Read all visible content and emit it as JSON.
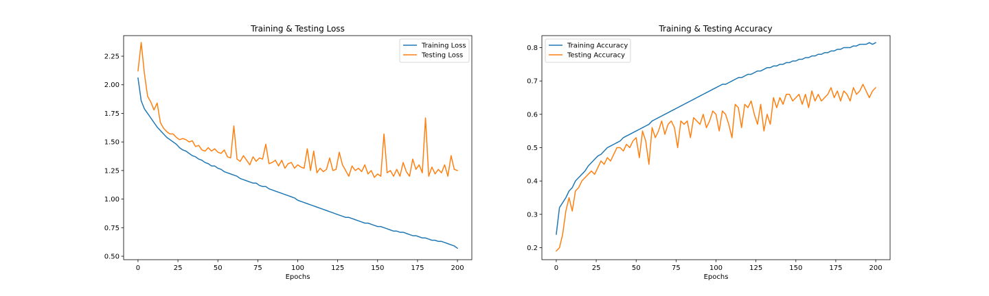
{
  "colors": {
    "training": "#1f77b4",
    "testing": "#ff7f0e"
  },
  "chart_data": [
    {
      "type": "line",
      "title": "Training & Testing Loss",
      "xlabel": "Epochs",
      "ylabel": "",
      "xlim": [
        -9,
        209
      ],
      "ylim": [
        0.47,
        2.43
      ],
      "xticks": [
        0,
        25,
        50,
        75,
        100,
        125,
        150,
        175,
        200
      ],
      "yticks": [
        0.5,
        0.75,
        1.0,
        1.25,
        1.5,
        1.75,
        2.0,
        2.25
      ],
      "ytick_labels": [
        "0.50",
        "0.75",
        "1.00",
        "1.25",
        "1.50",
        "1.75",
        "2.00",
        "2.25"
      ],
      "legend": "top-right",
      "grid": false,
      "x": [
        0,
        2,
        4,
        6,
        8,
        10,
        12,
        14,
        16,
        18,
        20,
        22,
        24,
        26,
        28,
        30,
        32,
        34,
        36,
        38,
        40,
        42,
        44,
        46,
        48,
        50,
        52,
        54,
        56,
        58,
        60,
        62,
        64,
        66,
        68,
        70,
        72,
        74,
        76,
        78,
        80,
        82,
        84,
        86,
        88,
        90,
        92,
        94,
        96,
        98,
        100,
        102,
        104,
        106,
        108,
        110,
        112,
        114,
        116,
        118,
        120,
        122,
        124,
        126,
        128,
        130,
        132,
        134,
        136,
        138,
        140,
        142,
        144,
        146,
        148,
        150,
        152,
        154,
        156,
        158,
        160,
        162,
        164,
        166,
        168,
        170,
        172,
        174,
        176,
        178,
        180,
        182,
        184,
        186,
        188,
        190,
        192,
        194,
        196,
        198,
        200
      ],
      "series": [
        {
          "name": "Training Loss",
          "color": "#1f77b4",
          "values": [
            2.06,
            1.86,
            1.79,
            1.75,
            1.71,
            1.67,
            1.63,
            1.6,
            1.57,
            1.54,
            1.52,
            1.5,
            1.48,
            1.45,
            1.43,
            1.42,
            1.4,
            1.38,
            1.37,
            1.35,
            1.34,
            1.32,
            1.31,
            1.29,
            1.29,
            1.27,
            1.26,
            1.24,
            1.23,
            1.22,
            1.21,
            1.2,
            1.18,
            1.17,
            1.16,
            1.15,
            1.14,
            1.14,
            1.12,
            1.11,
            1.11,
            1.09,
            1.08,
            1.07,
            1.06,
            1.05,
            1.04,
            1.03,
            1.02,
            1.01,
            0.99,
            0.98,
            0.97,
            0.96,
            0.95,
            0.94,
            0.93,
            0.92,
            0.91,
            0.9,
            0.89,
            0.88,
            0.87,
            0.86,
            0.85,
            0.84,
            0.84,
            0.83,
            0.82,
            0.81,
            0.8,
            0.79,
            0.79,
            0.78,
            0.77,
            0.76,
            0.76,
            0.75,
            0.74,
            0.73,
            0.72,
            0.72,
            0.71,
            0.71,
            0.7,
            0.69,
            0.68,
            0.68,
            0.67,
            0.66,
            0.66,
            0.65,
            0.64,
            0.64,
            0.63,
            0.63,
            0.62,
            0.61,
            0.6,
            0.59,
            0.57
          ]
        },
        {
          "name": "Testing Loss",
          "color": "#ff7f0e",
          "values": [
            2.12,
            2.37,
            2.1,
            1.9,
            1.85,
            1.78,
            1.84,
            1.67,
            1.62,
            1.59,
            1.57,
            1.57,
            1.54,
            1.52,
            1.53,
            1.52,
            1.5,
            1.51,
            1.46,
            1.47,
            1.43,
            1.42,
            1.45,
            1.42,
            1.44,
            1.41,
            1.4,
            1.43,
            1.37,
            1.36,
            1.64,
            1.35,
            1.33,
            1.38,
            1.34,
            1.3,
            1.37,
            1.33,
            1.36,
            1.35,
            1.48,
            1.31,
            1.32,
            1.34,
            1.29,
            1.34,
            1.27,
            1.31,
            1.32,
            1.27,
            1.3,
            1.28,
            1.27,
            1.44,
            1.25,
            1.42,
            1.23,
            1.27,
            1.24,
            1.26,
            1.36,
            1.25,
            1.26,
            1.41,
            1.3,
            1.25,
            1.2,
            1.29,
            1.25,
            1.27,
            1.24,
            1.3,
            1.22,
            1.25,
            1.19,
            1.22,
            1.2,
            1.57,
            1.23,
            1.25,
            1.2,
            1.26,
            1.2,
            1.32,
            1.24,
            1.2,
            1.35,
            1.26,
            1.3,
            1.23,
            1.71,
            1.2,
            1.28,
            1.22,
            1.26,
            1.23,
            1.3,
            1.2,
            1.38,
            1.26,
            1.25
          ]
        }
      ]
    },
    {
      "type": "line",
      "title": "Training & Testing Accuracy",
      "xlabel": "Epochs",
      "ylabel": "",
      "xlim": [
        -9,
        209
      ],
      "ylim": [
        0.164,
        0.836
      ],
      "xticks": [
        0,
        25,
        50,
        75,
        100,
        125,
        150,
        175,
        200
      ],
      "yticks": [
        0.2,
        0.3,
        0.4,
        0.5,
        0.6,
        0.7,
        0.8
      ],
      "ytick_labels": [
        "0.2",
        "0.3",
        "0.4",
        "0.5",
        "0.6",
        "0.7",
        "0.8"
      ],
      "legend": "top-left",
      "grid": false,
      "x": [
        0,
        2,
        4,
        6,
        8,
        10,
        12,
        14,
        16,
        18,
        20,
        22,
        24,
        26,
        28,
        30,
        32,
        34,
        36,
        38,
        40,
        42,
        44,
        46,
        48,
        50,
        52,
        54,
        56,
        58,
        60,
        62,
        64,
        66,
        68,
        70,
        72,
        74,
        76,
        78,
        80,
        82,
        84,
        86,
        88,
        90,
        92,
        94,
        96,
        98,
        100,
        102,
        104,
        106,
        108,
        110,
        112,
        114,
        116,
        118,
        120,
        122,
        124,
        126,
        128,
        130,
        132,
        134,
        136,
        138,
        140,
        142,
        144,
        146,
        148,
        150,
        152,
        154,
        156,
        158,
        160,
        162,
        164,
        166,
        168,
        170,
        172,
        174,
        176,
        178,
        180,
        182,
        184,
        186,
        188,
        190,
        192,
        194,
        196,
        198,
        200
      ],
      "series": [
        {
          "name": "Training Accuracy",
          "color": "#1f77b4",
          "values": [
            0.24,
            0.32,
            0.335,
            0.35,
            0.37,
            0.38,
            0.4,
            0.41,
            0.42,
            0.43,
            0.445,
            0.455,
            0.465,
            0.475,
            0.48,
            0.49,
            0.5,
            0.505,
            0.51,
            0.515,
            0.52,
            0.53,
            0.535,
            0.54,
            0.545,
            0.55,
            0.555,
            0.56,
            0.565,
            0.57,
            0.58,
            0.585,
            0.59,
            0.595,
            0.6,
            0.605,
            0.61,
            0.615,
            0.62,
            0.625,
            0.63,
            0.635,
            0.64,
            0.645,
            0.65,
            0.655,
            0.66,
            0.665,
            0.67,
            0.675,
            0.68,
            0.685,
            0.69,
            0.69,
            0.695,
            0.7,
            0.705,
            0.71,
            0.71,
            0.715,
            0.72,
            0.72,
            0.725,
            0.73,
            0.73,
            0.735,
            0.74,
            0.74,
            0.745,
            0.745,
            0.75,
            0.75,
            0.755,
            0.755,
            0.76,
            0.76,
            0.765,
            0.765,
            0.77,
            0.77,
            0.775,
            0.775,
            0.78,
            0.78,
            0.785,
            0.785,
            0.79,
            0.79,
            0.795,
            0.795,
            0.8,
            0.8,
            0.8,
            0.805,
            0.805,
            0.81,
            0.81,
            0.81,
            0.815,
            0.81,
            0.815
          ]
        },
        {
          "name": "Testing Accuracy",
          "color": "#ff7f0e",
          "values": [
            0.19,
            0.2,
            0.24,
            0.31,
            0.35,
            0.31,
            0.37,
            0.38,
            0.4,
            0.41,
            0.42,
            0.43,
            0.42,
            0.44,
            0.46,
            0.45,
            0.47,
            0.46,
            0.48,
            0.5,
            0.5,
            0.49,
            0.51,
            0.5,
            0.52,
            0.53,
            0.47,
            0.55,
            0.52,
            0.45,
            0.56,
            0.53,
            0.55,
            0.58,
            0.54,
            0.57,
            0.58,
            0.56,
            0.5,
            0.58,
            0.57,
            0.58,
            0.53,
            0.59,
            0.58,
            0.57,
            0.6,
            0.56,
            0.58,
            0.61,
            0.6,
            0.55,
            0.61,
            0.6,
            0.57,
            0.53,
            0.63,
            0.62,
            0.56,
            0.63,
            0.62,
            0.64,
            0.6,
            0.57,
            0.63,
            0.55,
            0.6,
            0.57,
            0.65,
            0.62,
            0.65,
            0.63,
            0.66,
            0.66,
            0.64,
            0.65,
            0.66,
            0.63,
            0.66,
            0.62,
            0.67,
            0.64,
            0.66,
            0.64,
            0.65,
            0.66,
            0.68,
            0.65,
            0.67,
            0.64,
            0.67,
            0.66,
            0.64,
            0.68,
            0.66,
            0.67,
            0.69,
            0.67,
            0.65,
            0.67,
            0.68
          ]
        }
      ]
    }
  ]
}
